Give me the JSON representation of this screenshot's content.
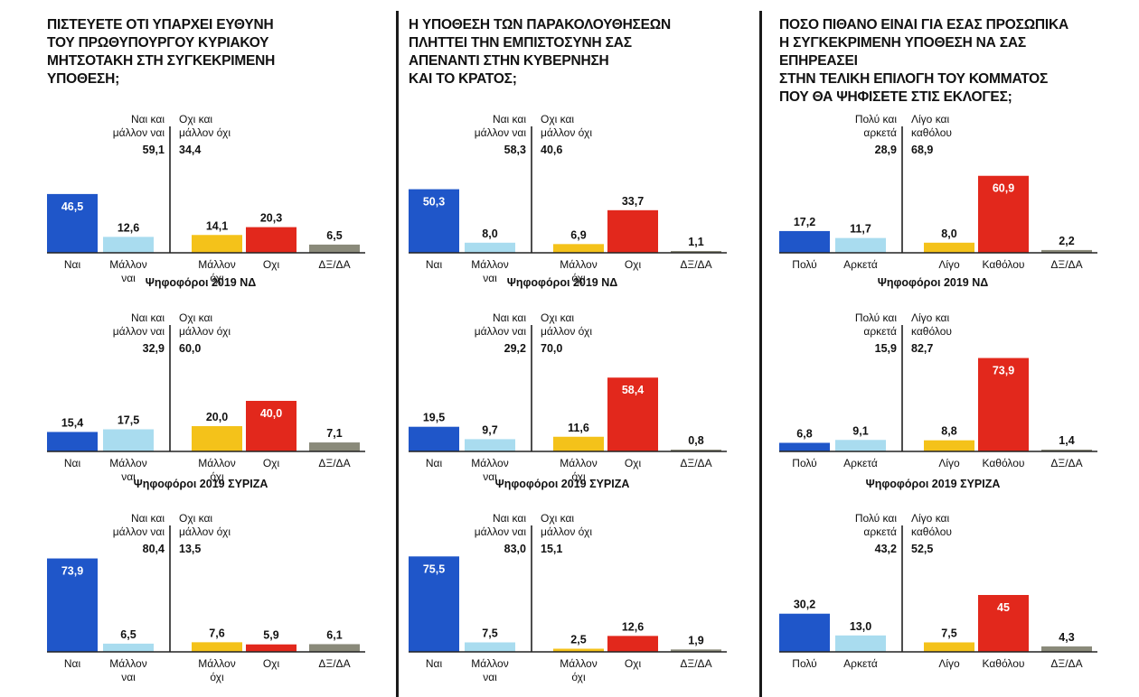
{
  "colors": {
    "blue": "#1f56c9",
    "light_blue": "#a9dcef",
    "yellow": "#f4c21a",
    "red": "#e2281c",
    "gray": "#8a8a7a"
  },
  "chart_data": [
    {
      "type": "bar",
      "title": "ΠΙΣΤΕΥΕΤΕ ΟΤΙ ΥΠΑΡΧΕΙ ΕΥΘΥΝΗ\nΤΟΥ ΠΡΩΘΥΠΟΥΡΓΟΥ ΚΥΡΙΑΚΟΥ\nΜΗΤΣΟΤΑΚΗ ΣΤΗ ΣΥΓΚΕΚΡΙΜΕΝΗ\nΥΠΟΘΕΣΗ;",
      "categories": [
        "Ναι",
        "Μάλλον\nναι",
        "Μάλλον\nόχι",
        "Οχι",
        "ΔΞ/ΔΑ"
      ],
      "group_labels": [
        "Ναι και\nμάλλον ναι",
        "Οχι και\nμάλλον όχι"
      ],
      "panels": [
        {
          "subtitle": "",
          "values": [
            46.5,
            12.6,
            14.1,
            20.3,
            6.5
          ],
          "labels": [
            "46,5",
            "12,6",
            "14,1",
            "20,3",
            "6,5"
          ],
          "group_values": [
            "59,1",
            "34,4"
          ]
        },
        {
          "subtitle": "Ψηφοφόροι 2019 ΝΔ",
          "values": [
            15.4,
            17.5,
            20.0,
            40.0,
            7.1
          ],
          "labels": [
            "15,4",
            "17,5",
            "20,0",
            "40,0",
            "7,1"
          ],
          "group_values": [
            "32,9",
            "60,0"
          ]
        },
        {
          "subtitle": "Ψηφοφόροι 2019 ΣΥΡΙΖΑ",
          "values": [
            73.9,
            6.5,
            7.6,
            5.9,
            6.1
          ],
          "labels": [
            "73,9",
            "6,5",
            "7,6",
            "5,9",
            "6,1"
          ],
          "group_values": [
            "80,4",
            "13,5"
          ]
        }
      ]
    },
    {
      "type": "bar",
      "title": "Η ΥΠΟΘΕΣΗ ΤΩΝ ΠΑΡΑΚΟΛΟΥΘΗΣΕΩΝ\nΠΛΗΤΤΕΙ ΤΗΝ ΕΜΠΙΣΤΟΣΥΝΗ ΣΑΣ\nΑΠΕΝΑΝΤΙ ΣΤΗΝ ΚΥΒΕΡΝΗΣΗ\nΚΑΙ ΤΟ ΚΡΑΤΟΣ;",
      "categories": [
        "Ναι",
        "Μάλλον\nναι",
        "Μάλλον\nόχι",
        "Οχι",
        "ΔΞ/ΔΑ"
      ],
      "group_labels": [
        "Ναι και\nμάλλον ναι",
        "Οχι και\nμάλλον όχι"
      ],
      "panels": [
        {
          "subtitle": "",
          "values": [
            50.3,
            8.0,
            6.9,
            33.7,
            1.1
          ],
          "labels": [
            "50,3",
            "8,0",
            "6,9",
            "33,7",
            "1,1"
          ],
          "group_values": [
            "58,3",
            "40,6"
          ]
        },
        {
          "subtitle": "Ψηφοφόροι 2019 ΝΔ",
          "values": [
            19.5,
            9.7,
            11.6,
            58.4,
            0.8
          ],
          "labels": [
            "19,5",
            "9,7",
            "11,6",
            "58,4",
            "0,8"
          ],
          "group_values": [
            "29,2",
            "70,0"
          ]
        },
        {
          "subtitle": "Ψηφοφόροι 2019 ΣΥΡΙΖΑ",
          "values": [
            75.5,
            7.5,
            2.5,
            12.6,
            1.9
          ],
          "labels": [
            "75,5",
            "7,5",
            "2,5",
            "12,6",
            "1,9"
          ],
          "group_values": [
            "83,0",
            "15,1"
          ]
        }
      ]
    },
    {
      "type": "bar",
      "title": "ΠΟΣΟ ΠΙΘΑΝΟ ΕΙΝΑΙ ΓΙΑ ΕΣΑΣ ΠΡΟΣΩΠΙΚΑ\nΗ ΣΥΓΚΕΚΡΙΜΕΝΗ ΥΠΟΘΕΣΗ ΝΑ ΣΑΣ ΕΠΗΡΕΑΣΕΙ\nΣΤΗΝ ΤΕΛΙΚΗ ΕΠΙΛΟΓΗ ΤΟΥ ΚΟΜΜΑΤΟΣ\nΠΟΥ ΘΑ ΨΗΦΙΣΕΤΕ ΣΤΙΣ ΕΚΛΟΓΕΣ;",
      "categories": [
        "Πολύ",
        "Αρκετά",
        "Λίγο",
        "Καθόλου",
        "ΔΞ/ΔΑ"
      ],
      "group_labels": [
        "Πολύ και\nαρκετά",
        "Λίγο και\nκαθόλου"
      ],
      "panels": [
        {
          "subtitle": "",
          "values": [
            17.2,
            11.7,
            8.0,
            60.9,
            2.2
          ],
          "labels": [
            "17,2",
            "11,7",
            "8,0",
            "60,9",
            "2,2"
          ],
          "group_values": [
            "28,9",
            "68,9"
          ]
        },
        {
          "subtitle": "Ψηφοφόροι 2019 ΝΔ",
          "values": [
            6.8,
            9.1,
            8.8,
            73.9,
            1.4
          ],
          "labels": [
            "6,8",
            "9,1",
            "8,8",
            "73,9",
            "1,4"
          ],
          "group_values": [
            "15,9",
            "82,7"
          ]
        },
        {
          "subtitle": "Ψηφοφόροι 2019 ΣΥΡΙΖΑ",
          "values": [
            30.2,
            13.0,
            7.5,
            45,
            4.3
          ],
          "labels": [
            "30,2",
            "13,0",
            "7,5",
            "45",
            "4,3"
          ],
          "group_values": [
            "43,2",
            "52,5"
          ]
        }
      ]
    }
  ]
}
